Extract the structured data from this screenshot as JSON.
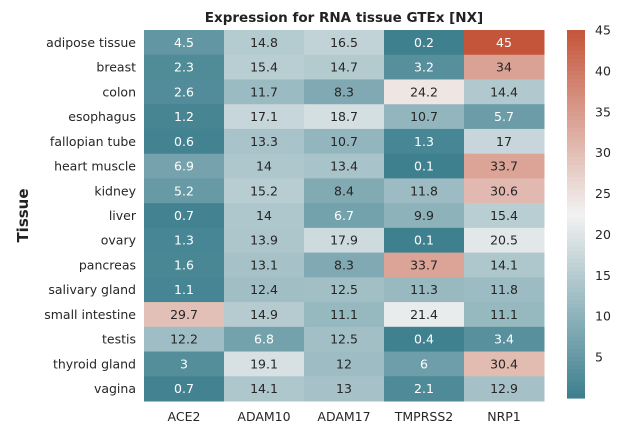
{
  "chart_data": {
    "type": "heatmap",
    "title": "Expression for RNA tissue GTEx [NX]",
    "xlabel": "",
    "ylabel": "Tissue",
    "columns": [
      "ACE2",
      "ADAM10",
      "ADAM17",
      "TMPRSS2",
      "NRP1"
    ],
    "rows": [
      "adipose tissue",
      "breast",
      "colon",
      "esophagus",
      "fallopian tube",
      "heart muscle",
      "kidney",
      "liver",
      "ovary",
      "pancreas",
      "salivary gland",
      "small intestine",
      "testis",
      "thyroid gland",
      "vagina"
    ],
    "values": [
      [
        4.5,
        14.8,
        16.5,
        0.2,
        45
      ],
      [
        2.3,
        15.4,
        14.7,
        3.2,
        34
      ],
      [
        2.6,
        11.7,
        8.3,
        24.2,
        14.4
      ],
      [
        1.2,
        17.1,
        18.7,
        10.7,
        5.7
      ],
      [
        0.6,
        13.3,
        10.7,
        1.3,
        17
      ],
      [
        6.9,
        14,
        13.4,
        0.1,
        33.7
      ],
      [
        5.2,
        15.2,
        8.4,
        11.8,
        30.6
      ],
      [
        0.7,
        14,
        6.7,
        9.9,
        15.4
      ],
      [
        1.3,
        13.9,
        17.9,
        0.1,
        20.5
      ],
      [
        1.6,
        13.1,
        8.3,
        33.7,
        14.1
      ],
      [
        1.1,
        12.4,
        12.5,
        11.3,
        11.8
      ],
      [
        29.7,
        14.9,
        11.1,
        21.4,
        11.1
      ],
      [
        12.2,
        6.8,
        12.5,
        0.4,
        3.4
      ],
      [
        3,
        19.1,
        12,
        6,
        30.4
      ],
      [
        0.7,
        14.1,
        13,
        2.1,
        12.9
      ]
    ],
    "color_range": [
      0,
      45
    ],
    "colorbar_ticks": [
      5,
      10,
      15,
      20,
      25,
      30,
      35,
      40,
      45
    ],
    "colormap": {
      "low": "#3d7f8e",
      "mid": "#f2f2f2",
      "high": "#c4553a"
    },
    "grid": false
  }
}
